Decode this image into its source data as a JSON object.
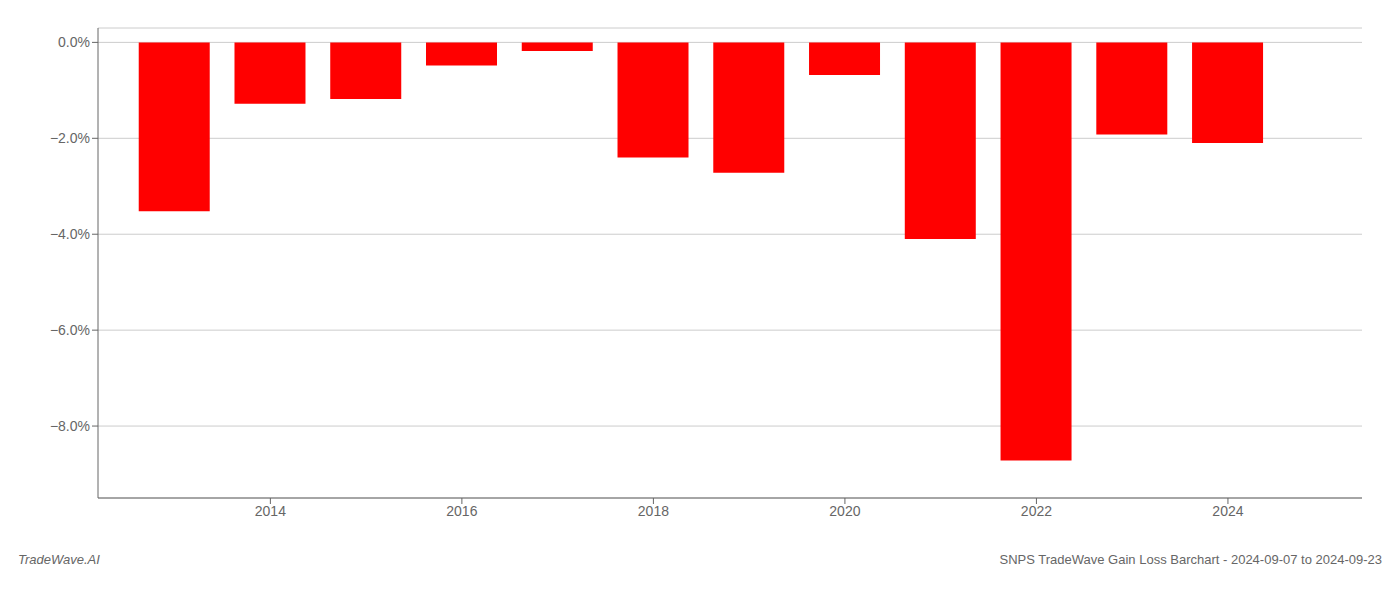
{
  "chart_data": {
    "type": "bar",
    "x": [
      2013,
      2014,
      2015,
      2016,
      2017,
      2018,
      2019,
      2020,
      2021,
      2022,
      2023,
      2024
    ],
    "values": [
      -3.52,
      -1.28,
      -1.18,
      -0.48,
      -0.18,
      -2.4,
      -2.72,
      -0.68,
      -4.1,
      -8.72,
      -1.92,
      -2.1
    ],
    "color": "#ff0000",
    "xlim": [
      2012.2,
      2025.4
    ],
    "xticks": [
      2014,
      2016,
      2018,
      2020,
      2022,
      2024
    ],
    "ylim": [
      -9.5,
      0.3
    ],
    "yticks": [
      {
        "value": 0.0,
        "label": "0.0%"
      },
      {
        "value": -2.0,
        "label": "−2.0%"
      },
      {
        "value": -4.0,
        "label": "−4.0%"
      },
      {
        "value": -6.0,
        "label": "−6.0%"
      },
      {
        "value": -8.0,
        "label": "−8.0%"
      }
    ],
    "grid": true,
    "annotations": [
      "TradeWave.AI",
      "SNPS TradeWave Gain Loss Barchart - 2024-09-07 to 2024-09-23"
    ]
  }
}
